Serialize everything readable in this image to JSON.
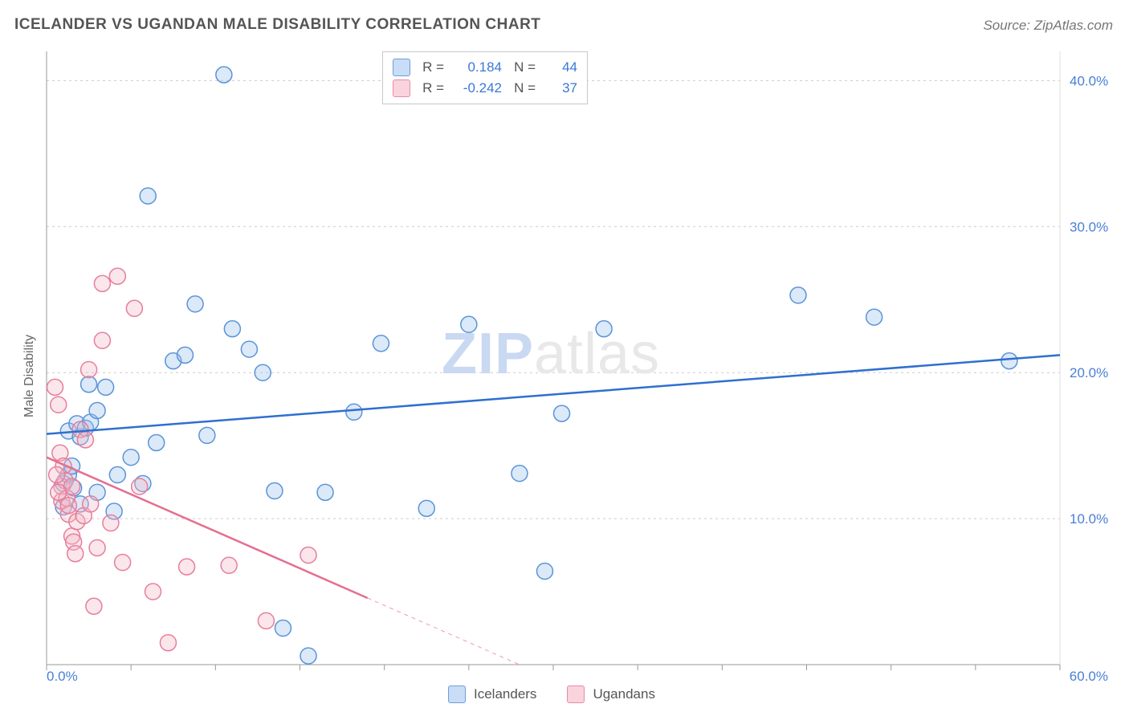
{
  "title": "ICELANDER VS UGANDAN MALE DISABILITY CORRELATION CHART",
  "source": "Source: ZipAtlas.com",
  "ylabel": "Male Disability",
  "watermark": {
    "part1": "ZIP",
    "part2": "atlas"
  },
  "chart": {
    "type": "scatter",
    "background_color": "#ffffff",
    "grid_color": "#cccccc",
    "grid_dash": "3,4",
    "axis_color": "#999999",
    "xlim": [
      0,
      60
    ],
    "ylim": [
      0,
      42
    ],
    "x_ticks": [
      0,
      5,
      10,
      15,
      20,
      25,
      30,
      35,
      40,
      45,
      50,
      55,
      60
    ],
    "x_tick_labels": {
      "0": "0.0%",
      "60": "60.0%"
    },
    "y_ticks": [
      10,
      20,
      30,
      40
    ],
    "y_tick_labels": {
      "10": "10.0%",
      "20": "20.0%",
      "30": "30.0%",
      "40": "40.0%"
    },
    "tick_label_color": "#4a7fd6",
    "tick_label_fontsize": 17,
    "marker_radius": 10,
    "marker_fill_opacity": 0.35,
    "marker_stroke_width": 1.5,
    "series": [
      {
        "name": "Icelanders",
        "color_fill": "#9cc1ec",
        "color_stroke": "#5a94d8",
        "trend": {
          "x1": 0,
          "y1": 15.8,
          "x2": 60,
          "y2": 21.2,
          "color": "#2f6fd0",
          "width": 2.5,
          "solid_until_x": 60
        },
        "points": [
          [
            1.0,
            12.4
          ],
          [
            1.3,
            13.0
          ],
          [
            1.6,
            12.1
          ],
          [
            1.3,
            16.0
          ],
          [
            1.8,
            16.5
          ],
          [
            2.0,
            15.6
          ],
          [
            2.3,
            16.2
          ],
          [
            2.6,
            16.6
          ],
          [
            2.5,
            19.2
          ],
          [
            3.0,
            17.4
          ],
          [
            3.5,
            19.0
          ],
          [
            4.2,
            13.0
          ],
          [
            5.0,
            14.2
          ],
          [
            5.7,
            12.4
          ],
          [
            6.5,
            15.2
          ],
          [
            7.5,
            20.8
          ],
          [
            8.2,
            21.2
          ],
          [
            8.8,
            24.7
          ],
          [
            6.0,
            32.1
          ],
          [
            10.5,
            40.4
          ],
          [
            9.5,
            15.7
          ],
          [
            11.0,
            23.0
          ],
          [
            12.0,
            21.6
          ],
          [
            12.8,
            20.0
          ],
          [
            13.5,
            11.9
          ],
          [
            14.0,
            2.5
          ],
          [
            15.5,
            0.6
          ],
          [
            16.5,
            11.8
          ],
          [
            18.2,
            17.3
          ],
          [
            19.8,
            22.0
          ],
          [
            22.5,
            10.7
          ],
          [
            25.0,
            23.3
          ],
          [
            28.0,
            13.1
          ],
          [
            29.5,
            6.4
          ],
          [
            30.5,
            17.2
          ],
          [
            33.0,
            23.0
          ],
          [
            44.5,
            25.3
          ],
          [
            49.0,
            23.8
          ],
          [
            57.0,
            20.8
          ],
          [
            1.0,
            10.8
          ],
          [
            2.0,
            11.0
          ],
          [
            3.0,
            11.8
          ],
          [
            4.0,
            10.5
          ],
          [
            1.5,
            13.6
          ]
        ]
      },
      {
        "name": "Ugandans",
        "color_fill": "#f4b9c7",
        "color_stroke": "#e87d9b",
        "trend": {
          "x1": 0,
          "y1": 14.2,
          "x2": 28,
          "y2": 0,
          "color": "#e56f8f",
          "width": 2.5,
          "solid_until_x": 19
        },
        "points": [
          [
            0.5,
            19.0
          ],
          [
            0.7,
            17.8
          ],
          [
            0.8,
            14.5
          ],
          [
            0.9,
            12.2
          ],
          [
            0.9,
            11.2
          ],
          [
            1.0,
            13.6
          ],
          [
            1.1,
            12.6
          ],
          [
            1.2,
            11.4
          ],
          [
            1.3,
            10.3
          ],
          [
            1.3,
            10.9
          ],
          [
            1.5,
            12.2
          ],
          [
            1.5,
            8.8
          ],
          [
            1.6,
            8.4
          ],
          [
            1.7,
            7.6
          ],
          [
            1.8,
            9.8
          ],
          [
            2.0,
            16.1
          ],
          [
            2.2,
            10.2
          ],
          [
            2.3,
            15.4
          ],
          [
            2.5,
            20.2
          ],
          [
            2.6,
            11.0
          ],
          [
            2.8,
            4.0
          ],
          [
            3.0,
            8.0
          ],
          [
            3.3,
            26.1
          ],
          [
            3.3,
            22.2
          ],
          [
            3.8,
            9.7
          ],
          [
            4.2,
            26.6
          ],
          [
            4.5,
            7.0
          ],
          [
            5.2,
            24.4
          ],
          [
            5.5,
            12.2
          ],
          [
            6.3,
            5.0
          ],
          [
            7.2,
            1.5
          ],
          [
            8.3,
            6.7
          ],
          [
            10.8,
            6.8
          ],
          [
            13.0,
            3.0
          ],
          [
            15.5,
            7.5
          ],
          [
            0.6,
            13.0
          ],
          [
            0.7,
            11.8
          ]
        ]
      }
    ]
  },
  "stats": {
    "rows": [
      {
        "swatch_fill": "#c9ddf6",
        "swatch_stroke": "#6b9edb",
        "r_label": "R =",
        "r": "0.184",
        "n_label": "N =",
        "n": "44",
        "val_color": "#3a78d6"
      },
      {
        "swatch_fill": "#f9d3dd",
        "swatch_stroke": "#ea8aa4",
        "r_label": "R =",
        "r": "-0.242",
        "n_label": "N =",
        "n": "37",
        "val_color": "#3a78d6"
      }
    ]
  },
  "legend": [
    {
      "swatch_fill": "#c9ddf6",
      "swatch_stroke": "#6b9edb",
      "label": "Icelanders"
    },
    {
      "swatch_fill": "#f9d3dd",
      "swatch_stroke": "#ea8aa4",
      "label": "Ugandans"
    }
  ]
}
